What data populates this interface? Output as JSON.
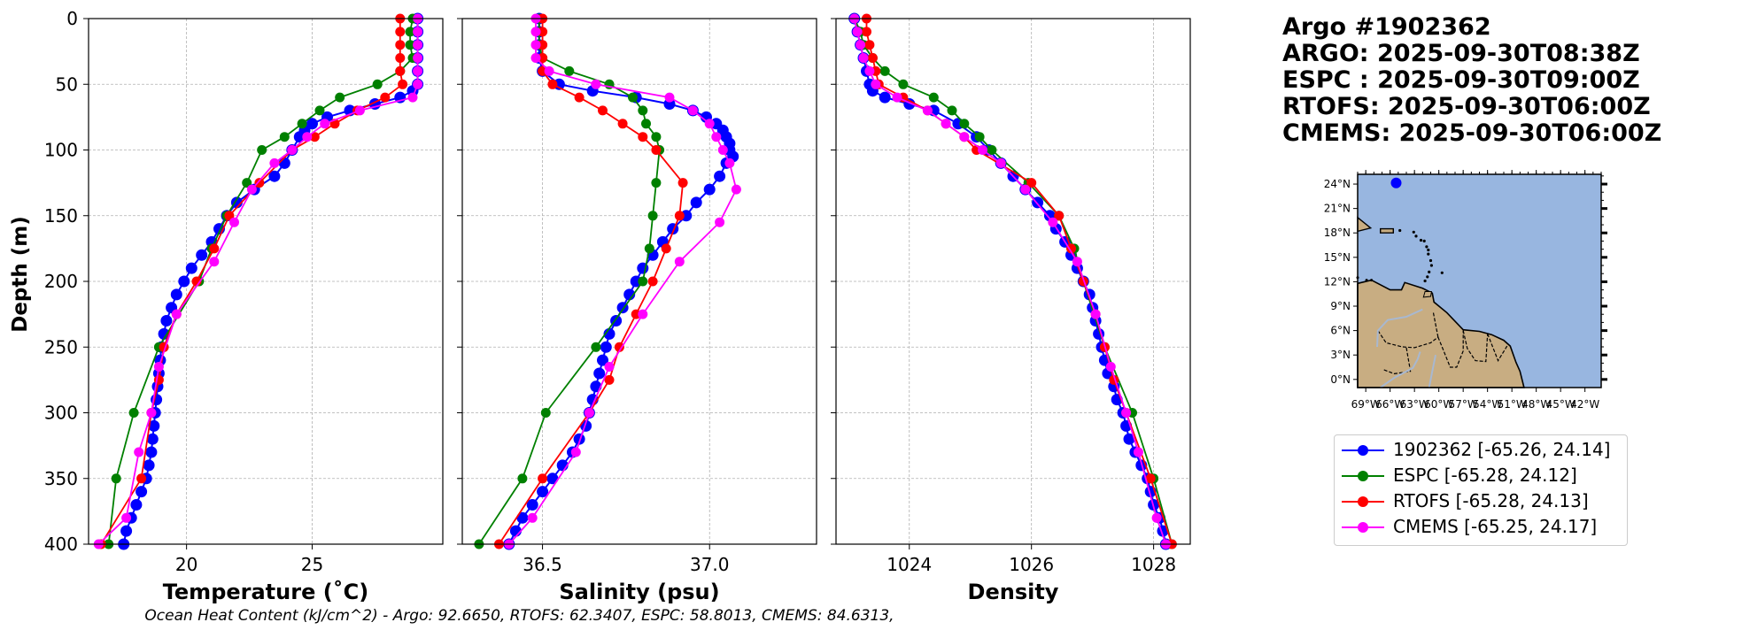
{
  "header": {
    "lines": [
      "Argo #1902362",
      "ARGO: 2025-09-30T08:38Z",
      "ESPC : 2025-09-30T09:00Z",
      "RTOFS: 2025-09-30T06:00Z",
      "CMEMS: 2025-09-30T06:00Z"
    ]
  },
  "footer": {
    "text": "Ocean Heat Content (kJ/cm^2) - Argo: 92.6650,  RTOFS: 62.3407,  ESPC: 58.8013,  CMEMS: 84.6313,"
  },
  "legend": {
    "entries": [
      {
        "label": "1902362 [-65.26, 24.14]",
        "color": "#0000ff"
      },
      {
        "label": "ESPC [-65.28, 24.12]",
        "color": "#008000"
      },
      {
        "label": "RTOFS [-65.28, 24.13]",
        "color": "#ff0000"
      },
      {
        "label": "CMEMS [-65.25, 24.17]",
        "color": "#ff00ff"
      }
    ]
  },
  "chart_data": [
    {
      "type": "line",
      "title": "",
      "xlabel": "Temperature (˚C)",
      "ylabel": "Depth (m)",
      "xlim": [
        16.1,
        30.2
      ],
      "ylim": [
        400,
        0
      ],
      "xticks": [
        20,
        25
      ],
      "yticks": [
        0,
        50,
        100,
        150,
        200,
        250,
        300,
        350,
        400
      ],
      "grid": true,
      "series": [
        {
          "name": "1902362",
          "color": "#0000ff",
          "depth": [
            0,
            10,
            20,
            30,
            40,
            50,
            55,
            60,
            65,
            70,
            75,
            80,
            85,
            90,
            100,
            110,
            120,
            130,
            140,
            150,
            160,
            170,
            180,
            190,
            200,
            210,
            220,
            230,
            240,
            250,
            260,
            270,
            280,
            290,
            300,
            310,
            320,
            330,
            340,
            350,
            360,
            370,
            380,
            390,
            400
          ],
          "values": [
            29.2,
            29.2,
            29.2,
            29.2,
            29.2,
            29.2,
            29.0,
            28.5,
            27.5,
            26.5,
            25.6,
            25.0,
            24.7,
            24.5,
            24.2,
            23.9,
            23.5,
            22.7,
            22.0,
            21.6,
            21.3,
            21.0,
            20.6,
            20.2,
            19.9,
            19.6,
            19.4,
            19.2,
            19.1,
            19.0,
            18.95,
            18.9,
            18.85,
            18.8,
            18.75,
            18.7,
            18.65,
            18.6,
            18.5,
            18.4,
            18.2,
            18.0,
            17.8,
            17.6,
            17.5
          ]
        },
        {
          "name": "ESPC",
          "color": "#008000",
          "depth": [
            0,
            10,
            20,
            30,
            40,
            50,
            60,
            70,
            80,
            90,
            100,
            125,
            150,
            175,
            200,
            250,
            300,
            350,
            400
          ],
          "values": [
            29.0,
            28.9,
            28.9,
            29.0,
            28.5,
            27.6,
            26.1,
            25.3,
            24.6,
            23.9,
            23.0,
            22.4,
            21.6,
            21.0,
            20.5,
            18.9,
            17.9,
            17.2,
            16.9
          ]
        },
        {
          "name": "RTOFS",
          "color": "#ff0000",
          "depth": [
            0,
            10,
            20,
            30,
            40,
            50,
            60,
            70,
            80,
            90,
            100,
            125,
            150,
            175,
            200,
            225,
            250,
            275,
            300,
            350,
            400
          ],
          "values": [
            28.5,
            28.5,
            28.5,
            28.5,
            28.5,
            28.6,
            27.9,
            26.8,
            25.9,
            25.1,
            24.2,
            22.9,
            21.7,
            21.1,
            20.4,
            19.6,
            19.1,
            18.9,
            18.6,
            18.2,
            16.6
          ]
        },
        {
          "name": "CMEMS",
          "color": "#ff00ff",
          "depth": [
            0,
            10,
            20,
            30,
            40,
            50,
            60,
            70,
            80,
            90,
            100,
            110,
            130,
            155,
            185,
            225,
            265,
            300,
            330,
            380,
            400
          ],
          "values": [
            29.2,
            29.2,
            29.2,
            29.2,
            29.2,
            29.2,
            29.0,
            26.9,
            25.5,
            24.8,
            24.2,
            23.5,
            22.6,
            21.9,
            21.1,
            19.6,
            18.9,
            18.6,
            18.1,
            17.6,
            16.5
          ]
        }
      ]
    },
    {
      "type": "line",
      "title": "",
      "xlabel": "Salinity (psu)",
      "ylabel": "",
      "xlim": [
        36.26,
        37.32
      ],
      "ylim": [
        400,
        0
      ],
      "xticks": [
        36.5,
        37.0
      ],
      "xticklabels": [
        "36.5",
        "37.0"
      ],
      "yticks": [
        0,
        50,
        100,
        150,
        200,
        250,
        300,
        350,
        400
      ],
      "grid": true,
      "series": [
        {
          "name": "1902362",
          "color": "#0000ff",
          "depth": [
            0,
            10,
            20,
            30,
            40,
            50,
            55,
            60,
            65,
            70,
            75,
            80,
            85,
            90,
            95,
            100,
            105,
            110,
            120,
            130,
            140,
            150,
            160,
            170,
            180,
            190,
            200,
            210,
            220,
            230,
            240,
            250,
            260,
            270,
            280,
            290,
            300,
            310,
            320,
            330,
            340,
            350,
            360,
            370,
            380,
            390,
            400
          ],
          "values": [
            36.49,
            36.49,
            36.49,
            36.49,
            36.5,
            36.55,
            36.65,
            36.78,
            36.88,
            36.95,
            36.99,
            37.02,
            37.04,
            37.05,
            37.06,
            37.06,
            37.07,
            37.05,
            37.03,
            37.0,
            36.96,
            36.93,
            36.89,
            36.86,
            36.83,
            36.8,
            36.78,
            36.76,
            36.74,
            36.72,
            36.7,
            36.69,
            36.68,
            36.67,
            36.66,
            36.65,
            36.64,
            36.63,
            36.61,
            36.59,
            36.56,
            36.53,
            36.5,
            36.47,
            36.44,
            36.42,
            36.4
          ]
        },
        {
          "name": "ESPC",
          "color": "#008000",
          "depth": [
            0,
            10,
            20,
            30,
            40,
            50,
            60,
            70,
            80,
            90,
            100,
            125,
            150,
            175,
            200,
            250,
            300,
            350,
            400
          ],
          "values": [
            36.49,
            36.49,
            36.49,
            36.5,
            36.58,
            36.7,
            36.77,
            36.8,
            36.81,
            36.84,
            36.85,
            36.84,
            36.83,
            36.82,
            36.8,
            36.66,
            36.51,
            36.44,
            36.31
          ]
        },
        {
          "name": "RTOFS",
          "color": "#ff0000",
          "depth": [
            0,
            10,
            20,
            30,
            40,
            50,
            60,
            70,
            80,
            90,
            100,
            125,
            150,
            175,
            200,
            225,
            250,
            275,
            300,
            350,
            400
          ],
          "values": [
            36.5,
            36.5,
            36.5,
            36.5,
            36.5,
            36.53,
            36.61,
            36.68,
            36.74,
            36.8,
            36.84,
            36.92,
            36.91,
            36.87,
            36.83,
            36.78,
            36.73,
            36.7,
            36.64,
            36.5,
            36.37
          ]
        },
        {
          "name": "CMEMS",
          "color": "#ff00ff",
          "depth": [
            0,
            10,
            20,
            30,
            40,
            50,
            60,
            70,
            80,
            90,
            100,
            110,
            130,
            155,
            185,
            225,
            265,
            300,
            330,
            380,
            400
          ],
          "values": [
            36.48,
            36.48,
            36.48,
            36.48,
            36.52,
            36.66,
            36.88,
            36.95,
            37.0,
            37.02,
            37.04,
            37.06,
            37.08,
            37.03,
            36.91,
            36.8,
            36.7,
            36.64,
            36.6,
            36.47,
            36.4
          ]
        }
      ]
    },
    {
      "type": "line",
      "title": "",
      "xlabel": "Density",
      "ylabel": "",
      "xlim": [
        1022.8,
        1028.6
      ],
      "ylim": [
        400,
        0
      ],
      "xticks": [
        1024,
        1026,
        1028
      ],
      "yticks": [
        0,
        50,
        100,
        150,
        200,
        250,
        300,
        350,
        400
      ],
      "grid": true,
      "series": [
        {
          "name": "1902362",
          "color": "#0000ff",
          "depth": [
            0,
            10,
            20,
            30,
            40,
            50,
            55,
            60,
            65,
            70,
            80,
            90,
            100,
            110,
            120,
            130,
            140,
            150,
            160,
            170,
            180,
            190,
            200,
            210,
            220,
            230,
            240,
            250,
            260,
            270,
            280,
            290,
            300,
            310,
            320,
            330,
            340,
            350,
            360,
            370,
            380,
            390,
            400
          ],
          "values": [
            1023.1,
            1023.15,
            1023.2,
            1023.25,
            1023.3,
            1023.35,
            1023.4,
            1023.6,
            1024.0,
            1024.4,
            1024.8,
            1025.1,
            1025.3,
            1025.5,
            1025.7,
            1025.9,
            1026.1,
            1026.3,
            1026.4,
            1026.55,
            1026.65,
            1026.75,
            1026.85,
            1026.95,
            1027.0,
            1027.05,
            1027.1,
            1027.15,
            1027.2,
            1027.25,
            1027.35,
            1027.4,
            1027.5,
            1027.55,
            1027.6,
            1027.7,
            1027.8,
            1027.9,
            1027.95,
            1028.0,
            1028.1,
            1028.15,
            1028.2
          ]
        },
        {
          "name": "ESPC",
          "color": "#008000",
          "depth": [
            0,
            10,
            20,
            30,
            40,
            50,
            60,
            70,
            80,
            90,
            100,
            125,
            150,
            175,
            200,
            250,
            300,
            350,
            400
          ],
          "values": [
            1023.1,
            1023.2,
            1023.25,
            1023.4,
            1023.6,
            1023.9,
            1024.4,
            1024.7,
            1024.9,
            1025.15,
            1025.35,
            1025.95,
            1026.45,
            1026.7,
            1026.85,
            1027.2,
            1027.65,
            1028.0,
            1028.3
          ]
        },
        {
          "name": "RTOFS",
          "color": "#ff0000",
          "depth": [
            0,
            10,
            20,
            30,
            40,
            50,
            60,
            70,
            80,
            90,
            100,
            125,
            150,
            175,
            200,
            225,
            250,
            275,
            300,
            350,
            400
          ],
          "values": [
            1023.3,
            1023.3,
            1023.35,
            1023.4,
            1023.45,
            1023.5,
            1023.9,
            1024.3,
            1024.6,
            1024.9,
            1025.1,
            1026.0,
            1026.45,
            1026.65,
            1026.85,
            1027.05,
            1027.2,
            1027.35,
            1027.55,
            1027.95,
            1028.3
          ]
        },
        {
          "name": "CMEMS",
          "color": "#ff00ff",
          "depth": [
            0,
            10,
            20,
            30,
            40,
            50,
            60,
            70,
            80,
            90,
            100,
            110,
            130,
            155,
            185,
            225,
            265,
            300,
            330,
            380,
            400
          ],
          "values": [
            1023.1,
            1023.15,
            1023.2,
            1023.25,
            1023.35,
            1023.45,
            1023.8,
            1024.3,
            1024.6,
            1024.9,
            1025.2,
            1025.5,
            1025.9,
            1026.35,
            1026.75,
            1027.05,
            1027.3,
            1027.55,
            1027.75,
            1028.05,
            1028.2
          ]
        }
      ]
    }
  ],
  "inset_map": {
    "lat_ticks": [
      "24°N",
      "21°N",
      "18°N",
      "15°N",
      "12°N",
      "9°N",
      "6°N",
      "3°N",
      "0°N"
    ],
    "lon_ticks": [
      "69°W",
      "66°W",
      "63°W",
      "60°W",
      "57°W",
      "54°W",
      "51°W",
      "48°W",
      "45°W",
      "42°W"
    ],
    "ocean_color": "#98b6e0",
    "land_color": "#c8ad82",
    "float_position": {
      "lon": -65.26,
      "lat": 24.14
    }
  }
}
